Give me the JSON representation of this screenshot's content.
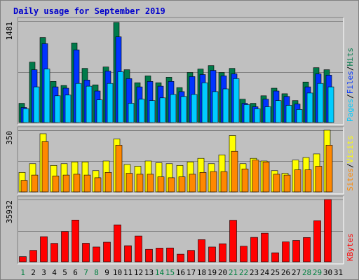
{
  "title": "Daily usage for September 2019",
  "colors": {
    "title": "#0000cc",
    "hits": "#007a4a",
    "files": "#0033ff",
    "pages": "#00ccff",
    "visits": "#ffff00",
    "sites": "#ff8800",
    "kbytes": "#ff0000",
    "weekend_day": "#008040",
    "weekday_day": "#000000",
    "panel_bg": "#c0c0c0"
  },
  "chart_data": [
    {
      "type": "bar",
      "panel": "hits_files_pages",
      "y_max_label": "1481",
      "ylim": [
        0,
        1481
      ],
      "side_labels": [
        "Pages",
        "/",
        "Files",
        "/",
        "Hits"
      ],
      "categories": [
        "1",
        "2",
        "3",
        "4",
        "5",
        "6",
        "7",
        "8",
        "9",
        "10",
        "11",
        "12",
        "13",
        "14",
        "15",
        "16",
        "17",
        "18",
        "19",
        "20",
        "21",
        "22",
        "23",
        "24",
        "25",
        "26",
        "27",
        "28",
        "29",
        "30",
        "31"
      ],
      "series": [
        {
          "name": "Hits",
          "values": [
            280,
            880,
            1240,
            600,
            540,
            1160,
            790,
            550,
            810,
            1460,
            770,
            580,
            680,
            580,
            660,
            510,
            730,
            780,
            830,
            730,
            790,
            340,
            280,
            390,
            500,
            420,
            320,
            590,
            800,
            770,
            0
          ]
        },
        {
          "name": "Files",
          "values": [
            220,
            770,
            1150,
            520,
            500,
            1060,
            620,
            460,
            750,
            1250,
            640,
            520,
            600,
            530,
            600,
            450,
            670,
            700,
            760,
            680,
            710,
            280,
            230,
            340,
            460,
            380,
            270,
            520,
            710,
            690,
            0
          ]
        },
        {
          "name": "Pages",
          "values": [
            200,
            520,
            780,
            390,
            400,
            570,
            530,
            330,
            570,
            740,
            280,
            340,
            320,
            360,
            410,
            380,
            410,
            580,
            450,
            490,
            640,
            260,
            200,
            230,
            320,
            250,
            190,
            430,
            570,
            520,
            0
          ]
        }
      ]
    },
    {
      "type": "bar",
      "panel": "visits_sites",
      "y_max_label": "350",
      "ylim": [
        0,
        350
      ],
      "side_labels": [
        "Sites",
        "/",
        "Visits"
      ],
      "categories": [
        "1",
        "2",
        "3",
        "4",
        "5",
        "6",
        "7",
        "8",
        "9",
        "10",
        "11",
        "12",
        "13",
        "14",
        "15",
        "16",
        "17",
        "18",
        "19",
        "20",
        "21",
        "22",
        "23",
        "24",
        "25",
        "26",
        "27",
        "28",
        "29",
        "30",
        "31"
      ],
      "series": [
        {
          "name": "Visits",
          "values": [
            110,
            160,
            330,
            150,
            160,
            170,
            170,
            120,
            175,
            300,
            155,
            145,
            175,
            165,
            160,
            150,
            170,
            190,
            160,
            210,
            320,
            160,
            190,
            175,
            120,
            105,
            180,
            195,
            215,
            350,
            0
          ]
        },
        {
          "name": "Sites",
          "values": [
            65,
            95,
            285,
            90,
            95,
            100,
            95,
            80,
            110,
            265,
            105,
            100,
            100,
            85,
            80,
            85,
            100,
            110,
            115,
            115,
            230,
            130,
            180,
            170,
            100,
            95,
            125,
            125,
            145,
            265,
            0
          ]
        }
      ]
    },
    {
      "type": "bar",
      "panel": "kbytes",
      "y_max_label": "35932",
      "ylim": [
        0,
        35932
      ],
      "side_labels": [
        "KBytes"
      ],
      "categories": [
        "1",
        "2",
        "3",
        "4",
        "5",
        "6",
        "7",
        "8",
        "9",
        "10",
        "11",
        "12",
        "13",
        "14",
        "15",
        "16",
        "17",
        "18",
        "19",
        "20",
        "21",
        "22",
        "23",
        "24",
        "25",
        "26",
        "27",
        "28",
        "29",
        "30",
        "31"
      ],
      "series": [
        {
          "name": "KBytes",
          "values": [
            3000,
            6600,
            14500,
            10600,
            17500,
            24100,
            10700,
            8500,
            11300,
            21300,
            9300,
            14900,
            7200,
            7900,
            8000,
            4400,
            6600,
            12800,
            8500,
            10400,
            24000,
            9000,
            14100,
            16500,
            5200,
            11500,
            12300,
            14000,
            23700,
            35932,
            0
          ]
        }
      ]
    }
  ],
  "days": [
    {
      "label": "1",
      "weekend": true
    },
    {
      "label": "2",
      "weekend": false
    },
    {
      "label": "3",
      "weekend": false
    },
    {
      "label": "4",
      "weekend": false
    },
    {
      "label": "5",
      "weekend": false
    },
    {
      "label": "6",
      "weekend": false
    },
    {
      "label": "7",
      "weekend": true
    },
    {
      "label": "8",
      "weekend": true
    },
    {
      "label": "9",
      "weekend": false
    },
    {
      "label": "10",
      "weekend": false
    },
    {
      "label": "11",
      "weekend": false
    },
    {
      "label": "12",
      "weekend": false
    },
    {
      "label": "13",
      "weekend": false
    },
    {
      "label": "14",
      "weekend": true
    },
    {
      "label": "15",
      "weekend": true
    },
    {
      "label": "16",
      "weekend": false
    },
    {
      "label": "17",
      "weekend": false
    },
    {
      "label": "18",
      "weekend": false
    },
    {
      "label": "19",
      "weekend": false
    },
    {
      "label": "20",
      "weekend": false
    },
    {
      "label": "21",
      "weekend": true
    },
    {
      "label": "22",
      "weekend": true
    },
    {
      "label": "23",
      "weekend": false
    },
    {
      "label": "24",
      "weekend": false
    },
    {
      "label": "25",
      "weekend": false
    },
    {
      "label": "26",
      "weekend": false
    },
    {
      "label": "27",
      "weekend": false
    },
    {
      "label": "28",
      "weekend": true
    },
    {
      "label": "29",
      "weekend": true
    },
    {
      "label": "30",
      "weekend": false
    },
    {
      "label": "31",
      "weekend": false
    }
  ]
}
